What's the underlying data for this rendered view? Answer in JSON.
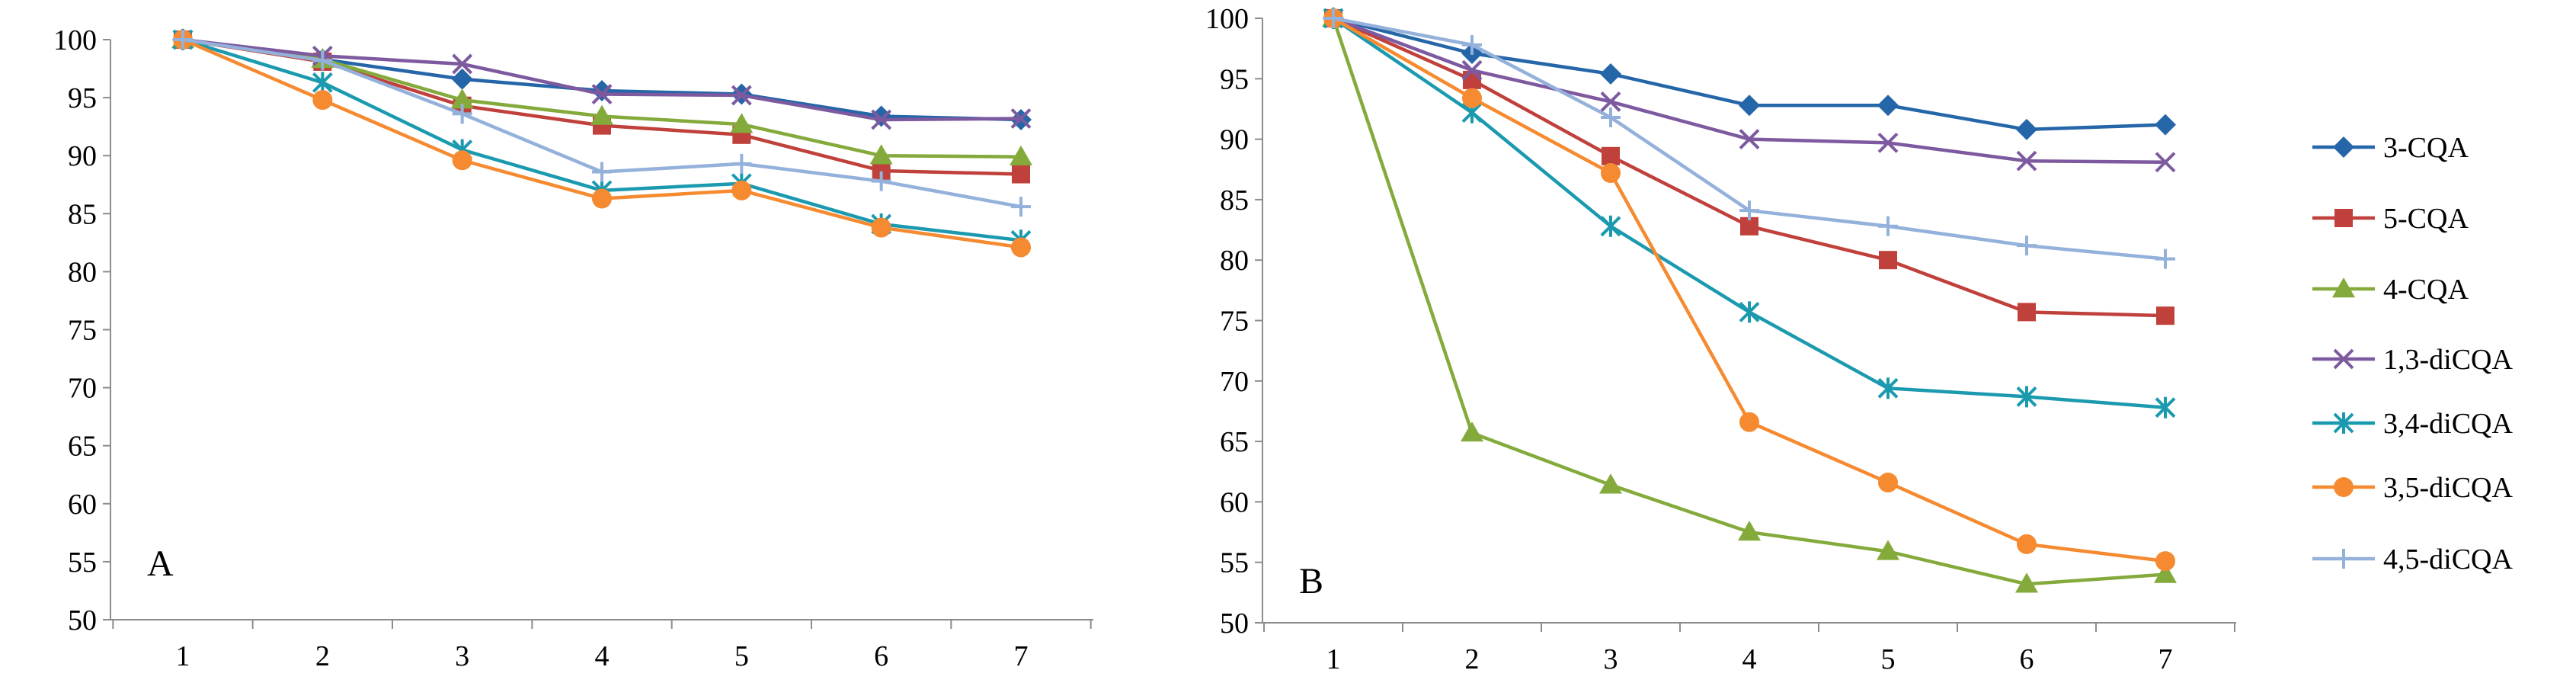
{
  "chart_data": [
    {
      "type": "line",
      "panel_label": "A",
      "categories": [
        "1",
        "2",
        "3",
        "4",
        "5",
        "6",
        "7"
      ],
      "ylim": [
        50,
        100
      ],
      "yticks": [
        "50",
        "55",
        "60",
        "65",
        "70",
        "75",
        "80",
        "85",
        "90",
        "95",
        "100"
      ],
      "grid": false,
      "series": [
        {
          "name": "3-CQA",
          "values": [
            100,
            98.3,
            96.6,
            95.6,
            95.3,
            93.4,
            93.1
          ]
        },
        {
          "name": "5-CQA",
          "values": [
            100,
            98.1,
            94.3,
            92.6,
            91.8,
            88.7,
            88.4
          ]
        },
        {
          "name": "4-CQA",
          "values": [
            100,
            98.3,
            94.8,
            93.4,
            92.7,
            90.0,
            89.9
          ]
        },
        {
          "name": "1,3-diCQA",
          "values": [
            100,
            98.6,
            97.9,
            95.3,
            95.2,
            93.1,
            93.2
          ]
        },
        {
          "name": "3,4-diCQA",
          "values": [
            100,
            96.3,
            90.5,
            87.0,
            87.6,
            84.1,
            82.7
          ]
        },
        {
          "name": "3,5-diCQA",
          "values": [
            100,
            94.8,
            89.6,
            86.3,
            87.0,
            83.8,
            82.1
          ]
        },
        {
          "name": "4,5-diCQA",
          "values": [
            100,
            98.2,
            93.6,
            88.6,
            89.3,
            87.8,
            85.6
          ]
        }
      ]
    },
    {
      "type": "line",
      "panel_label": "B",
      "categories": [
        "1",
        "2",
        "3",
        "4",
        "5",
        "6",
        "7"
      ],
      "ylim": [
        50,
        100
      ],
      "yticks": [
        "50",
        "55",
        "60",
        "65",
        "70",
        "75",
        "80",
        "85",
        "90",
        "95",
        "100"
      ],
      "grid": false,
      "legend_position": "right",
      "series": [
        {
          "name": "3-CQA",
          "values": [
            100,
            97.1,
            95.4,
            92.8,
            92.8,
            90.8,
            91.2
          ]
        },
        {
          "name": "5-CQA",
          "values": [
            100,
            94.9,
            88.6,
            82.8,
            80.0,
            75.7,
            75.4
          ]
        },
        {
          "name": "4-CQA",
          "values": [
            100,
            65.7,
            61.4,
            57.5,
            55.9,
            53.2,
            54.0
          ]
        },
        {
          "name": "1,3-diCQA",
          "values": [
            100,
            95.7,
            93.1,
            90.0,
            89.7,
            88.2,
            88.1
          ]
        },
        {
          "name": "3,4-diCQA",
          "values": [
            100,
            92.2,
            82.8,
            75.7,
            69.4,
            68.7,
            67.8
          ]
        },
        {
          "name": "3,5-diCQA",
          "values": [
            100,
            93.4,
            87.2,
            66.6,
            61.6,
            56.5,
            55.1
          ]
        },
        {
          "name": "4,5-diCQA",
          "values": [
            100,
            97.8,
            91.8,
            84.1,
            82.8,
            81.2,
            80.1
          ]
        }
      ]
    }
  ],
  "legend": {
    "entries": [
      {
        "label": "3-CQA",
        "color": "#2566A8",
        "marker": "diamond"
      },
      {
        "label": "5-CQA",
        "color": "#C0403B",
        "marker": "square"
      },
      {
        "label": "4-CQA",
        "color": "#84AA3C",
        "marker": "triangle"
      },
      {
        "label": "1,3-diCQA",
        "color": "#7D5A9F",
        "marker": "x"
      },
      {
        "label": "3,4-diCQA",
        "color": "#1B9AAF",
        "marker": "star"
      },
      {
        "label": "3,5-diCQA",
        "color": "#F58A30",
        "marker": "circle"
      },
      {
        "label": "4,5-diCQA",
        "color": "#93B1DA",
        "marker": "plus"
      }
    ]
  }
}
